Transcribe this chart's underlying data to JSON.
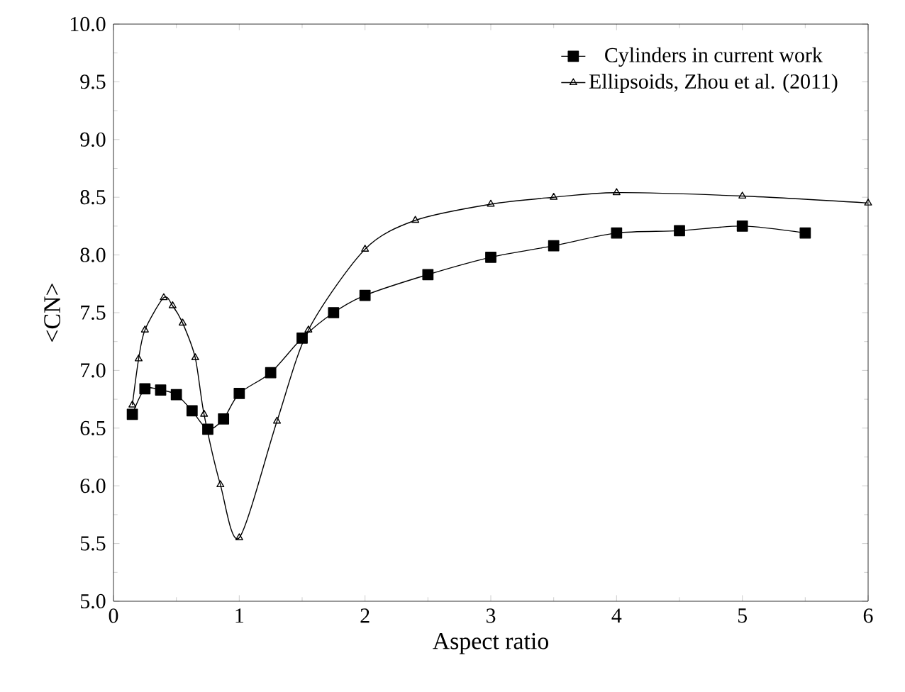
{
  "chart_data": {
    "type": "line",
    "xlabel": "Aspect ratio",
    "ylabel": "<CN>",
    "xlim": [
      0,
      6
    ],
    "ylim": [
      5.0,
      10.0
    ],
    "xticks": [
      0,
      1,
      2,
      3,
      4,
      5,
      6
    ],
    "yticks": [
      {
        "value": 5,
        "label": "5.0"
      },
      {
        "value": 5.5,
        "label": "5.5"
      },
      {
        "value": 6,
        "label": "6.0"
      },
      {
        "value": 6.5,
        "label": "6.5"
      },
      {
        "value": 7,
        "label": "7.0"
      },
      {
        "value": 7.5,
        "label": "7.5"
      },
      {
        "value": 8,
        "label": "8.0"
      },
      {
        "value": 8.5,
        "label": "8.5"
      },
      {
        "value": 9,
        "label": "9.0"
      },
      {
        "value": 9.5,
        "label": "9.5"
      },
      {
        "value": 10,
        "label": "10.0"
      }
    ],
    "legend": "top right",
    "grid": false,
    "series": [
      {
        "name": "Cylinders in current work",
        "color": "#000000",
        "marker": "square",
        "x": [
          0.15,
          0.25,
          0.375,
          0.5,
          0.625,
          0.75,
          0.875,
          1,
          1.25,
          1.5,
          1.75,
          2,
          2.5,
          3,
          3.5,
          4,
          4.5,
          5,
          5.5
        ],
        "values": [
          6.62,
          6.84,
          6.83,
          6.79,
          6.65,
          6.49,
          6.58,
          6.8,
          6.98,
          7.28,
          7.5,
          7.65,
          7.83,
          7.98,
          8.08,
          8.19,
          8.21,
          8.25,
          8.19
        ]
      },
      {
        "name": "Ellipsoids, Zhou et al. (2011)",
        "color": "#000000",
        "marker": "triangle",
        "x": [
          0.15,
          0.2,
          0.25,
          0.4,
          0.47,
          0.55,
          0.65,
          0.72,
          0.85,
          1.0,
          1.3,
          1.55,
          2.0,
          2.4,
          3.0,
          3.5,
          4.0,
          5.0,
          6.0
        ],
        "values": [
          6.7,
          7.1,
          7.35,
          7.63,
          7.56,
          7.41,
          7.11,
          6.62,
          6.01,
          5.55,
          6.56,
          7.35,
          8.05,
          8.3,
          8.44,
          8.5,
          8.54,
          8.51,
          8.45
        ]
      }
    ]
  }
}
